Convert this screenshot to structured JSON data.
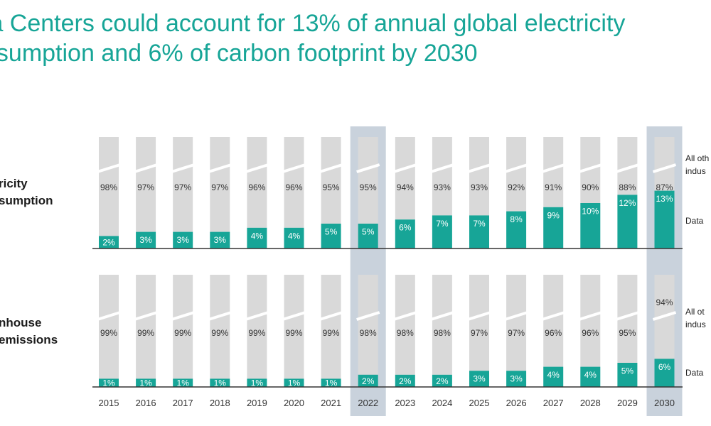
{
  "title_lines": [
    "ta Centers could account for 13% of annual global electricity",
    "nsumption and 6% of carbon footprint by 2030"
  ],
  "row_labels": {
    "electricity": [
      "ricity",
      "sumption"
    ],
    "emissions": [
      "nhouse",
      "emissions"
    ]
  },
  "legend": {
    "electricity_other": [
      "All oth",
      "indus"
    ],
    "electricity_dc": "Data",
    "emissions_other": [
      "All ot",
      "indus"
    ],
    "emissions_dc": "Data"
  },
  "colors": {
    "title": "#17a597",
    "data_centers": "#17a597",
    "other_industries": "#d9d9d9",
    "highlight": "#c9d2dc",
    "axis": "#333333"
  },
  "chart_data": [
    {
      "type": "bar",
      "stacked": true,
      "categories": [
        "2015",
        "2016",
        "2017",
        "2018",
        "2019",
        "2020",
        "2021",
        "2022",
        "2023",
        "2024",
        "2025",
        "2026",
        "2027",
        "2028",
        "2029",
        "2030"
      ],
      "highlighted_categories": [
        "2022",
        "2030"
      ],
      "axis_break": true,
      "series": [
        {
          "name": "Data",
          "values": [
            2,
            3,
            3,
            3,
            4,
            4,
            5,
            5,
            6,
            7,
            7,
            8,
            9,
            10,
            12,
            13
          ]
        },
        {
          "name": "All oth indus",
          "values": [
            98,
            97,
            97,
            97,
            96,
            96,
            95,
            95,
            94,
            93,
            93,
            92,
            91,
            90,
            88,
            87
          ]
        }
      ]
    },
    {
      "type": "bar",
      "stacked": true,
      "categories": [
        "2015",
        "2016",
        "2017",
        "2018",
        "2019",
        "2020",
        "2021",
        "2022",
        "2023",
        "2024",
        "2025",
        "2026",
        "2027",
        "2028",
        "2029",
        "2030"
      ],
      "highlighted_categories": [
        "2022",
        "2030"
      ],
      "axis_break": true,
      "series": [
        {
          "name": "Data",
          "values": [
            1,
            1,
            1,
            1,
            1,
            1,
            1,
            2,
            2,
            2,
            3,
            3,
            4,
            4,
            5,
            6
          ]
        },
        {
          "name": "All ot indus",
          "values": [
            99,
            99,
            99,
            99,
            99,
            99,
            99,
            98,
            98,
            98,
            97,
            97,
            96,
            96,
            95,
            94
          ]
        }
      ]
    }
  ]
}
